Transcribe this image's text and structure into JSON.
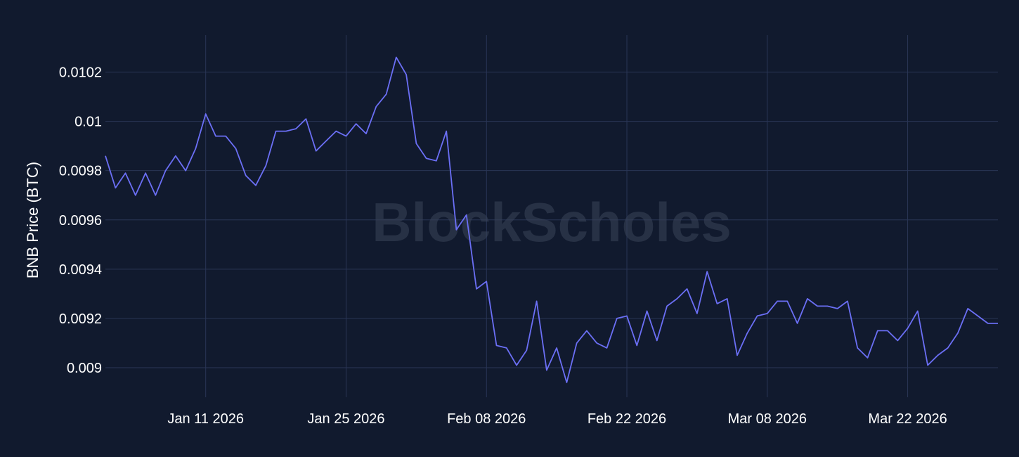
{
  "watermark": "BlockScholes",
  "colors": {
    "background": "#111a2e",
    "grid": "#2a3656",
    "line": "#6b6ff5",
    "text": "#ffffff"
  },
  "chart_data": {
    "type": "line",
    "ylabel": "BNB Price (BTC)",
    "xlabel": "",
    "title": "",
    "grid": true,
    "ylim": [
      0.00888,
      0.01035
    ],
    "xlim": [
      "2026-01-01",
      "2026-03-31"
    ],
    "y_ticks": [
      {
        "value": 0.009,
        "label": "0.009"
      },
      {
        "value": 0.0092,
        "label": "0.0092"
      },
      {
        "value": 0.0094,
        "label": "0.0094"
      },
      {
        "value": 0.0096,
        "label": "0.0096"
      },
      {
        "value": 0.0098,
        "label": "0.0098"
      },
      {
        "value": 0.01,
        "label": "0.01"
      },
      {
        "value": 0.0102,
        "label": "0.0102"
      }
    ],
    "x_ticks": [
      {
        "value": "2026-01-11",
        "label": "Jan 11 2026"
      },
      {
        "value": "2026-01-25",
        "label": "Jan 25 2026"
      },
      {
        "value": "2026-02-08",
        "label": "Feb 08 2026"
      },
      {
        "value": "2026-02-22",
        "label": "Feb 22 2026"
      },
      {
        "value": "2026-03-08",
        "label": "Mar 08 2026"
      },
      {
        "value": "2026-03-22",
        "label": "Mar 22 2026"
      }
    ],
    "series": [
      {
        "x": [
          "2026-01-01",
          "2026-01-02",
          "2026-01-03",
          "2026-01-04",
          "2026-01-05",
          "2026-01-06",
          "2026-01-07",
          "2026-01-08",
          "2026-01-09",
          "2026-01-10",
          "2026-01-11",
          "2026-01-12",
          "2026-01-13",
          "2026-01-14",
          "2026-01-15",
          "2026-01-16",
          "2026-01-17",
          "2026-01-18",
          "2026-01-19",
          "2026-01-20",
          "2026-01-21",
          "2026-01-22",
          "2026-01-23",
          "2026-01-24",
          "2026-01-25",
          "2026-01-26",
          "2026-01-27",
          "2026-01-28",
          "2026-01-29",
          "2026-01-30",
          "2026-01-31",
          "2026-02-01",
          "2026-02-02",
          "2026-02-03",
          "2026-02-04",
          "2026-02-05",
          "2026-02-06",
          "2026-02-07",
          "2026-02-08",
          "2026-02-09",
          "2026-02-10",
          "2026-02-11",
          "2026-02-12",
          "2026-02-13",
          "2026-02-14",
          "2026-02-15",
          "2026-02-16",
          "2026-02-17",
          "2026-02-18",
          "2026-02-19",
          "2026-02-20",
          "2026-02-21",
          "2026-02-22",
          "2026-02-23",
          "2026-02-24",
          "2026-02-25",
          "2026-02-26",
          "2026-02-27",
          "2026-02-28",
          "2026-03-01",
          "2026-03-02",
          "2026-03-03",
          "2026-03-04",
          "2026-03-05",
          "2026-03-06",
          "2026-03-07",
          "2026-03-08",
          "2026-03-09",
          "2026-03-10",
          "2026-03-11",
          "2026-03-12",
          "2026-03-13",
          "2026-03-14",
          "2026-03-15",
          "2026-03-16",
          "2026-03-17",
          "2026-03-18",
          "2026-03-19",
          "2026-03-20",
          "2026-03-21",
          "2026-03-22",
          "2026-03-23",
          "2026-03-24",
          "2026-03-25",
          "2026-03-26",
          "2026-03-27",
          "2026-03-28",
          "2026-03-29",
          "2026-03-30",
          "2026-03-31"
        ],
        "y": [
          0.00986,
          0.00973,
          0.00979,
          0.0097,
          0.00979,
          0.0097,
          0.0098,
          0.00986,
          0.0098,
          0.00989,
          0.01003,
          0.00994,
          0.00994,
          0.00989,
          0.00978,
          0.00974,
          0.00982,
          0.00996,
          0.00996,
          0.00997,
          0.01001,
          0.00988,
          0.00992,
          0.00996,
          0.00994,
          0.00999,
          0.00995,
          0.01006,
          0.01011,
          0.01026,
          0.01019,
          0.00991,
          0.00985,
          0.00984,
          0.00996,
          0.00956,
          0.00962,
          0.00932,
          0.00935,
          0.00909,
          0.00908,
          0.00901,
          0.00907,
          0.00927,
          0.00899,
          0.00908,
          0.00894,
          0.0091,
          0.00915,
          0.0091,
          0.00908,
          0.0092,
          0.00921,
          0.00909,
          0.00923,
          0.00911,
          0.00925,
          0.00928,
          0.00932,
          0.00922,
          0.00939,
          0.00926,
          0.00928,
          0.00905,
          0.00914,
          0.00921,
          0.00922,
          0.00927,
          0.00927,
          0.00918,
          0.00928,
          0.00925,
          0.00925,
          0.00924,
          0.00927,
          0.00908,
          0.00904,
          0.00915,
          0.00915,
          0.00911,
          0.00916,
          0.00923,
          0.00901,
          0.00905,
          0.00908,
          0.00914,
          0.00924,
          0.00921,
          0.00918,
          0.00918
        ]
      }
    ]
  }
}
